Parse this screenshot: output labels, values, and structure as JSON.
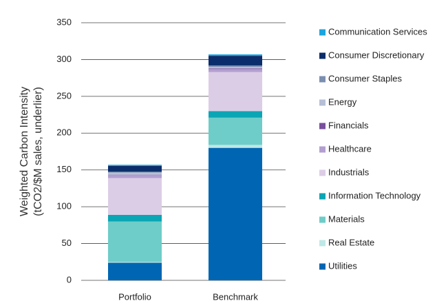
{
  "chart_data": {
    "type": "stacked_bar",
    "ylabel": [
      "Weighted Carbon Intensity",
      "(tCO2/$M sales, underlier)"
    ],
    "categories": [
      "Portfolio",
      "Benchmark"
    ],
    "series": [
      {
        "name": "Communication Services",
        "color": "#1ba5e0",
        "values": [
          1.5,
          2
        ]
      },
      {
        "name": "Consumer Discretionary",
        "color": "#0b2d6b",
        "values": [
          8,
          13
        ]
      },
      {
        "name": "Consumer Staples",
        "color": "#7b8fb0",
        "values": [
          1,
          2
        ]
      },
      {
        "name": "Energy",
        "color": "#b6bfd6",
        "values": [
          3,
          2
        ]
      },
      {
        "name": "Financials",
        "color": "#7a4f9e",
        "values": [
          0.5,
          1
        ]
      },
      {
        "name": "Healthcare",
        "color": "#b39fd0",
        "values": [
          4,
          4
        ]
      },
      {
        "name": "Industrials",
        "color": "#dccde6",
        "values": [
          50,
          53
        ]
      },
      {
        "name": "Information Technology",
        "color": "#0aa6b5",
        "values": [
          9,
          9
        ]
      },
      {
        "name": "Materials",
        "color": "#6ecdc8",
        "values": [
          55,
          37
        ]
      },
      {
        "name": "Real Estate",
        "color": "#bfe8e6",
        "values": [
          1,
          4
        ]
      },
      {
        "name": "Utilities",
        "color": "#0066b3",
        "values": [
          24,
          180
        ]
      }
    ],
    "ylim": [
      0,
      350
    ],
    "yticks": [
      0,
      50,
      100,
      150,
      200,
      250,
      300,
      350
    ],
    "grid": true
  }
}
